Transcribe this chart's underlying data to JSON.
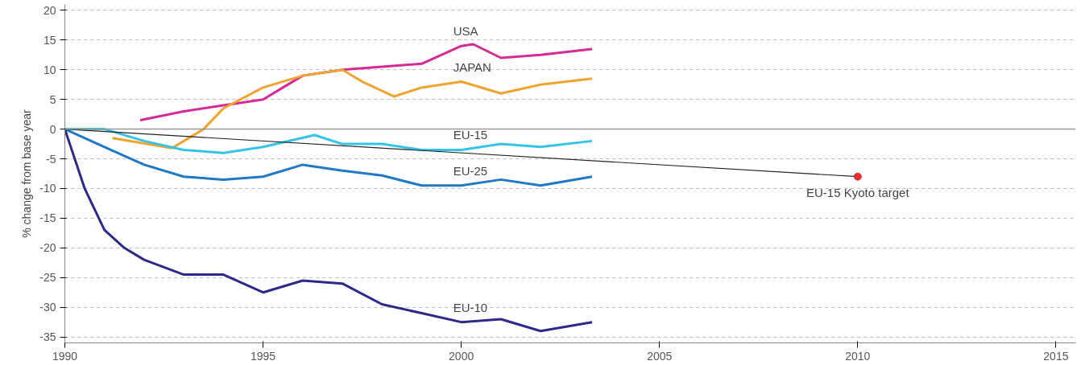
{
  "chart_data": {
    "type": "line",
    "ylabel": "% change from base year",
    "xlim": [
      1990,
      2015.5
    ],
    "ylim": [
      -36,
      21
    ],
    "xticks": [
      1990,
      1995,
      2000,
      2005,
      2010,
      2015
    ],
    "yticks": [
      20,
      15,
      10,
      5,
      0,
      -5,
      -10,
      -15,
      -20,
      -25,
      -30,
      -35
    ],
    "grid": "y",
    "line_style": "solid",
    "ref_lines": [
      {
        "axis": "y",
        "value": 0,
        "color": "#999999",
        "line_style": "solid"
      }
    ],
    "annotations": [
      {
        "text": "EU-15 Kyoto target",
        "x": 2010,
        "y": -8
      }
    ],
    "series": [
      {
        "name": "USA",
        "color": "#d62a96",
        "x": [
          1991.9,
          1993,
          1994,
          1995,
          1995.5,
          1996,
          1997,
          1998,
          1999,
          2000,
          2000.3,
          2001,
          2002,
          2003.3
        ],
        "values": [
          1.5,
          3,
          4,
          5,
          7,
          9,
          10,
          10.5,
          11,
          14,
          14.3,
          12,
          12.5,
          13.5
        ]
      },
      {
        "name": "JAPAN",
        "color": "#f0a430",
        "x": [
          1991.2,
          1992.7,
          1993.5,
          1994,
          1995,
          1996,
          1997,
          1997.5,
          1998.3,
          1999,
          2000,
          2001,
          2002,
          2003.3
        ],
        "values": [
          -1.5,
          -3.2,
          0,
          3.5,
          7,
          9,
          10,
          8,
          5.5,
          7,
          8,
          6,
          7.5,
          8.5
        ]
      },
      {
        "name": "EU-15",
        "color": "#35c3ea",
        "x": [
          1990,
          1991,
          1992,
          1993,
          1994,
          1995,
          1996.3,
          1997,
          1998,
          1999,
          2000,
          2001,
          2002,
          2003.3
        ],
        "values": [
          0,
          0,
          -2,
          -3.5,
          -4,
          -3,
          -1,
          -2.5,
          -2.5,
          -3.5,
          -3.5,
          -2.5,
          -3,
          -2
        ]
      },
      {
        "name": "EU-25",
        "color": "#1f78c8",
        "x": [
          1990,
          1991,
          1992,
          1993,
          1994,
          1995,
          1996,
          1997,
          1998,
          1999,
          2000,
          2001,
          2002,
          2003.3
        ],
        "values": [
          0,
          -3,
          -6,
          -8,
          -8.5,
          -8,
          -6,
          -7,
          -7.8,
          -9.5,
          -9.5,
          -8.5,
          -9.5,
          -8
        ]
      },
      {
        "name": "EU-10",
        "color": "#2b2a8a",
        "x": [
          1990,
          1990.5,
          1991,
          1991.5,
          1992,
          1993,
          1994,
          1994.5,
          1995,
          1996,
          1997,
          1998,
          1999,
          2000,
          2001,
          2002,
          2003.3
        ],
        "values": [
          0,
          -10,
          -17,
          -20,
          -22,
          -24.5,
          -24.5,
          -26,
          -27.5,
          -25.5,
          -26,
          -29.5,
          -31,
          -32.5,
          -32,
          -34,
          -32.5
        ]
      },
      {
        "type": "line",
        "color": "#222222",
        "x": [
          1990,
          2010
        ],
        "values": [
          0,
          -8
        ]
      },
      {
        "type": "scatter",
        "marker": "circle",
        "color": "#e03030",
        "x": [
          2010
        ],
        "values": [
          -8
        ]
      }
    ]
  }
}
